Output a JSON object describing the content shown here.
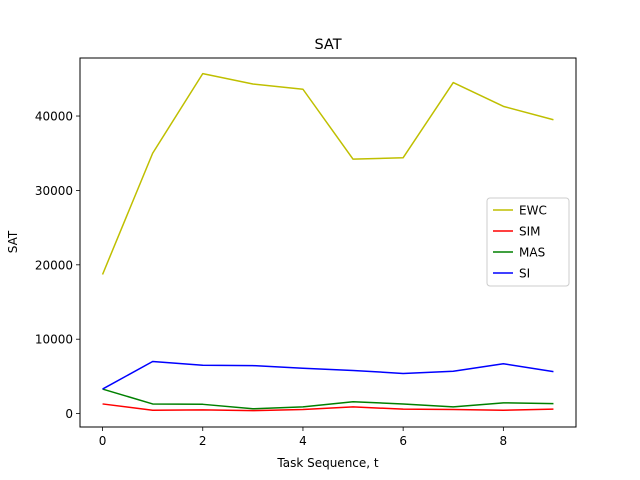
{
  "chart_data": {
    "type": "line",
    "title": "SAT",
    "xlabel": "Task Sequence, t",
    "ylabel": "SAT",
    "x": [
      0,
      1,
      2,
      3,
      4,
      5,
      6,
      7,
      8,
      9
    ],
    "xlim": [
      -0.45,
      9.45
    ],
    "ylim": [
      -1800,
      47800
    ],
    "xticks": [
      0,
      2,
      4,
      6,
      8
    ],
    "yticks": [
      0,
      10000,
      20000,
      30000,
      40000
    ],
    "grid": false,
    "legend_position": "center-right",
    "series": [
      {
        "name": "EWC",
        "color": "#bfbf00",
        "values": [
          18700,
          35000,
          45700,
          44300,
          43600,
          34200,
          34400,
          44500,
          41300,
          39500
        ]
      },
      {
        "name": "SIM",
        "color": "#ff0000",
        "values": [
          1300,
          450,
          500,
          400,
          550,
          900,
          600,
          550,
          450,
          600
        ]
      },
      {
        "name": "MAS",
        "color": "#008000",
        "values": [
          3300,
          1300,
          1250,
          650,
          900,
          1600,
          1300,
          900,
          1450,
          1350
        ]
      },
      {
        "name": "SI",
        "color": "#0000ff",
        "values": [
          3300,
          7000,
          6500,
          6450,
          6100,
          5800,
          5400,
          5700,
          6700,
          5650
        ]
      }
    ]
  }
}
